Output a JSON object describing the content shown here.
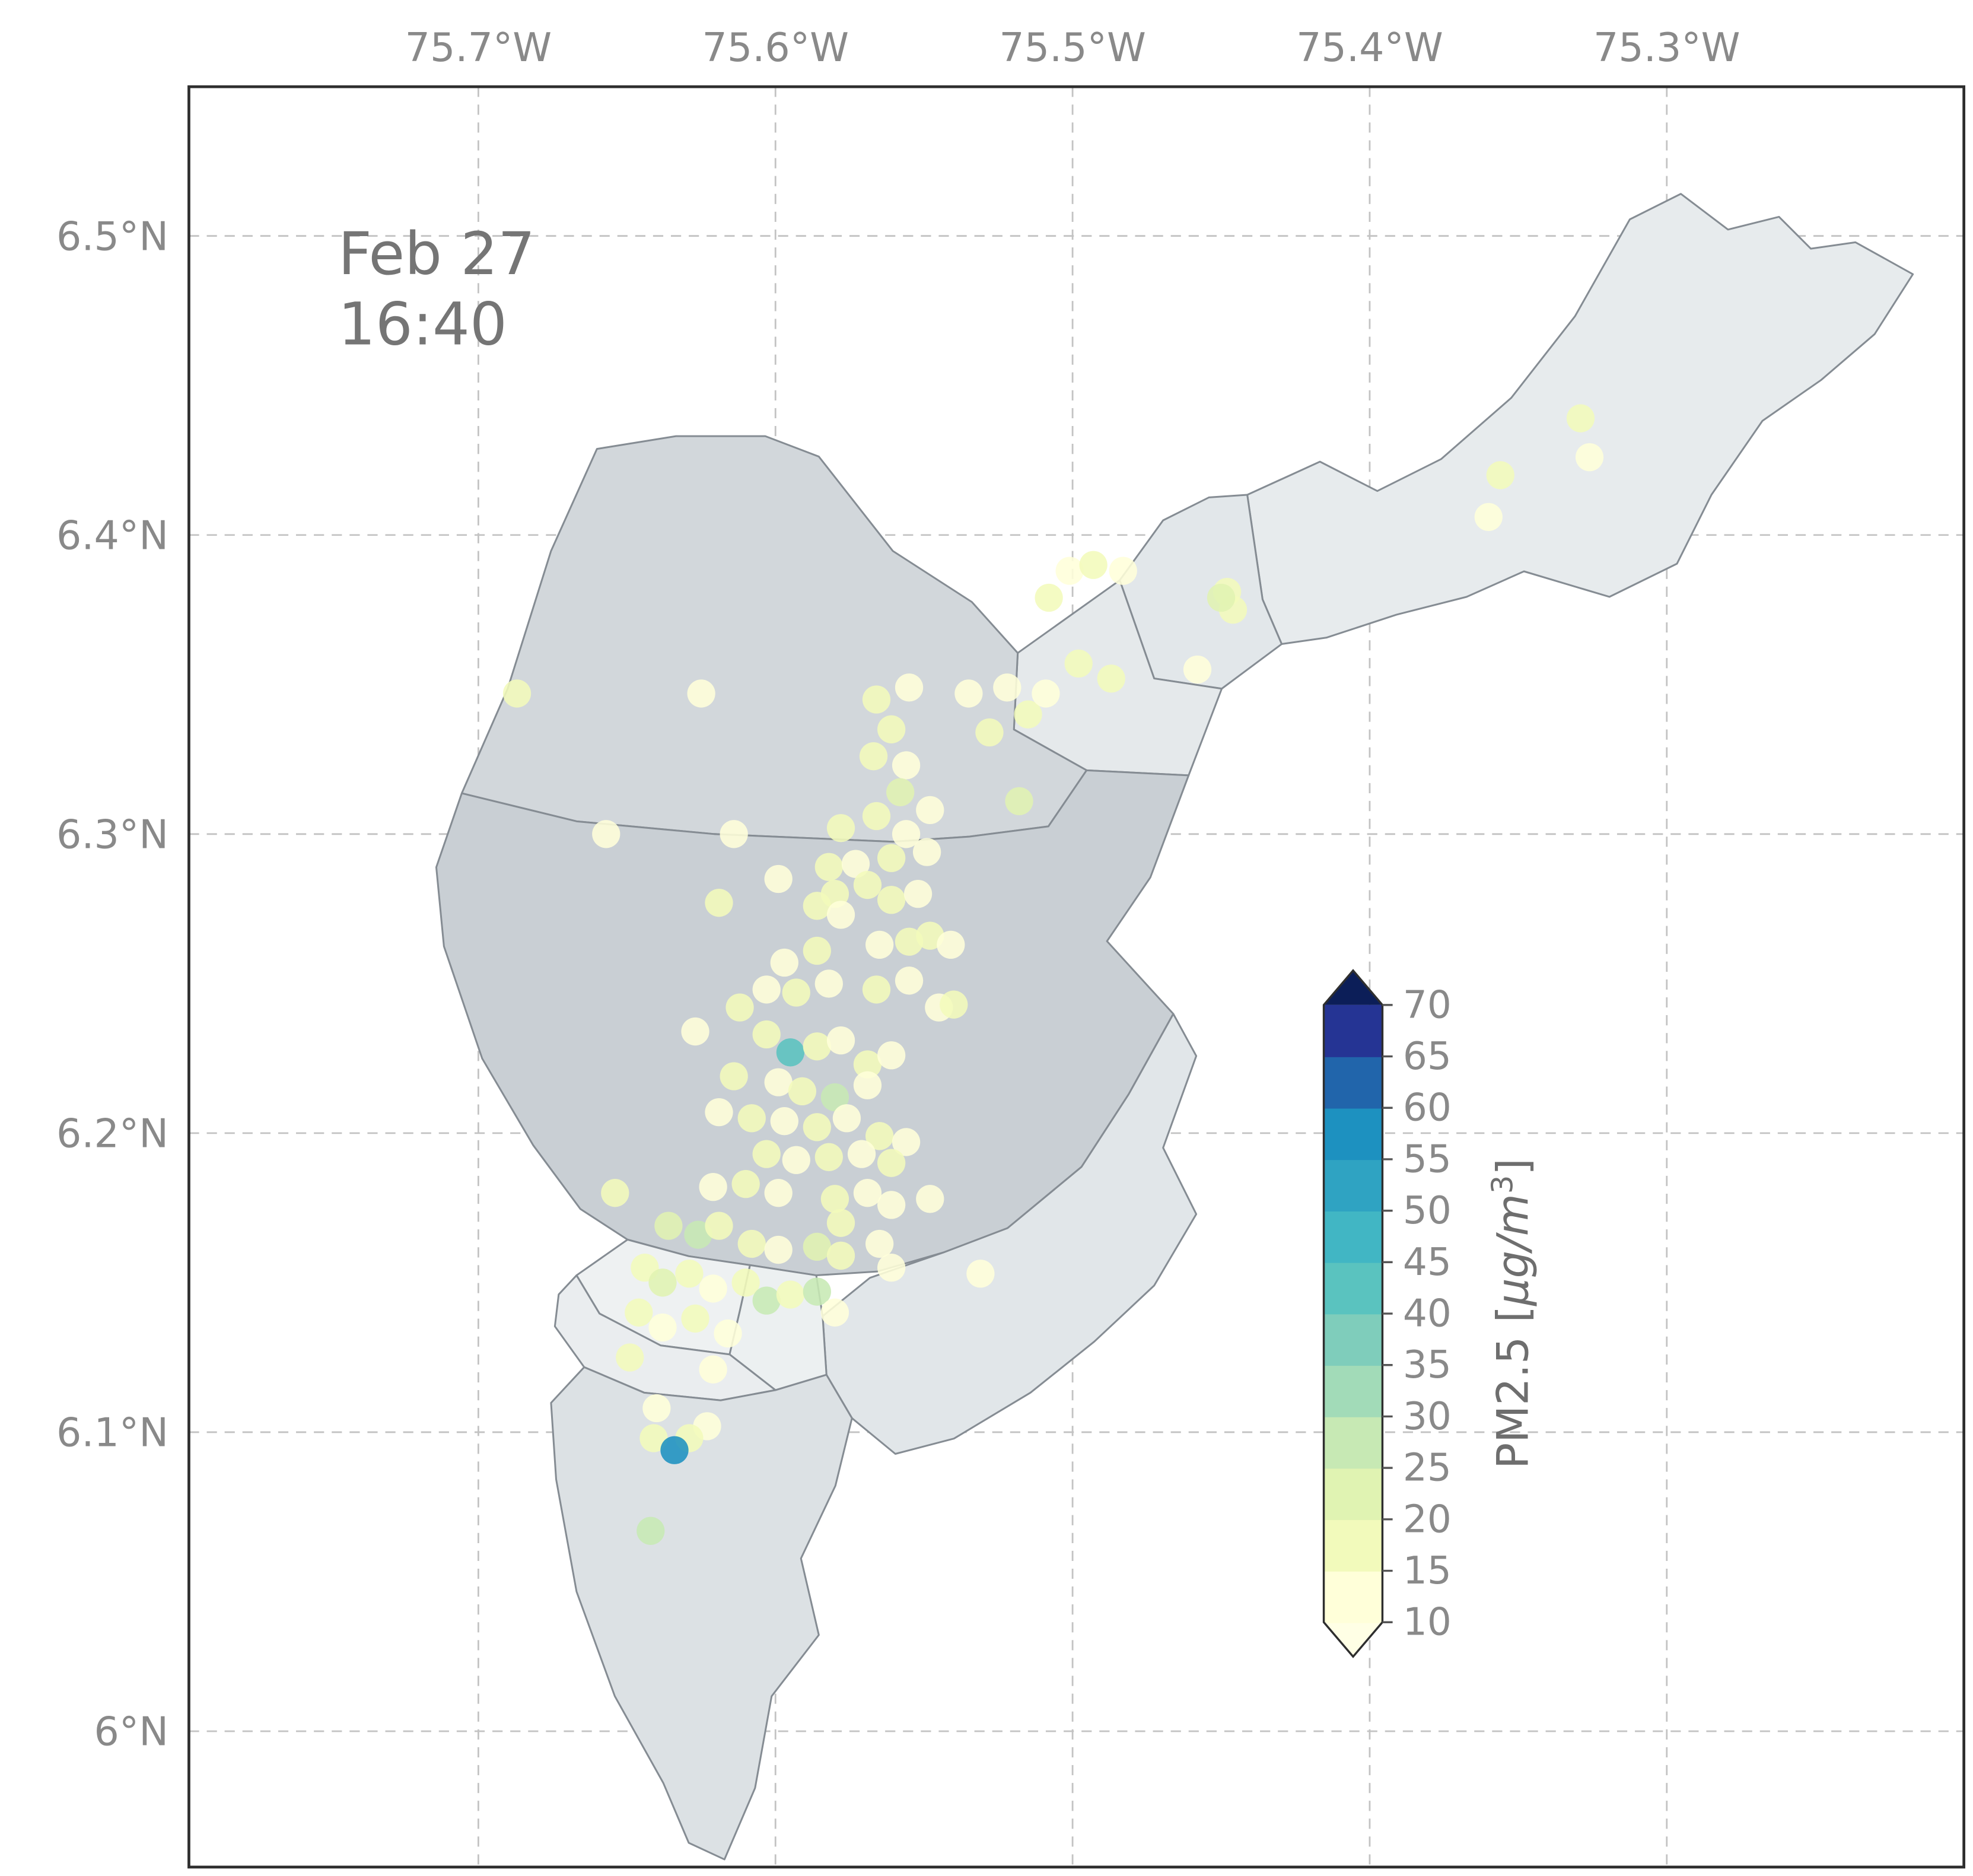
{
  "annotation": {
    "line1": "Feb 27",
    "line2": "16:40"
  },
  "axes": {
    "top_ticks": [
      {
        "label": "75.7°W",
        "lon": -75.7
      },
      {
        "label": "75.6°W",
        "lon": -75.6
      },
      {
        "label": "75.5°W",
        "lon": -75.5
      },
      {
        "label": "75.4°W",
        "lon": -75.4
      },
      {
        "label": "75.3°W",
        "lon": -75.3
      }
    ],
    "left_ticks": [
      {
        "label": "6.5°N",
        "lat": 6.5
      },
      {
        "label": "6.4°N",
        "lat": 6.4
      },
      {
        "label": "6.3°N",
        "lat": 6.3
      },
      {
        "label": "6.2°N",
        "lat": 6.2
      },
      {
        "label": "6.1°N",
        "lat": 6.1
      },
      {
        "label": "6°N",
        "lat": 6.0
      }
    ],
    "grid_color": "#c3c3c3",
    "frame_color": "#2e2e2e"
  },
  "colorbar": {
    "label_prefix": "PM2.5 [",
    "label_unit": "μg/m",
    "label_sup": "3",
    "label_suffix": "]",
    "levels": [
      10,
      15,
      20,
      25,
      30,
      35,
      40,
      45,
      50,
      55,
      60,
      65,
      70
    ],
    "tick_labels": [
      "10",
      "15",
      "20",
      "25",
      "30",
      "35",
      "40",
      "45",
      "50",
      "55",
      "60",
      "65",
      "70"
    ],
    "segment_colors": [
      "#ffffd9",
      "#f2fabb",
      "#e0f3b2",
      "#c7e9b4",
      "#a2dbb8",
      "#7fcdbb",
      "#5ac3bf",
      "#41b6c4",
      "#2fa3c2",
      "#1d91c0",
      "#2165ab",
      "#253494"
    ],
    "under_color": "#ffffe5",
    "over_color": "#0c1e58"
  },
  "map": {
    "border_color": "#858c93",
    "regions": [
      {
        "id": "region-1",
        "fill": "#e7ebed",
        "points": [
          [
            1005,
            505
          ],
          [
            990,
            470
          ],
          [
            978,
            388
          ],
          [
            1035,
            362
          ],
          [
            1080,
            385
          ],
          [
            1130,
            360
          ],
          [
            1185,
            312
          ],
          [
            1235,
            248
          ],
          [
            1278,
            172
          ],
          [
            1318,
            152
          ],
          [
            1355,
            180
          ],
          [
            1395,
            170
          ],
          [
            1420,
            195
          ],
          [
            1455,
            190
          ],
          [
            1500,
            215
          ],
          [
            1470,
            262
          ],
          [
            1428,
            298
          ],
          [
            1382,
            330
          ],
          [
            1342,
            388
          ],
          [
            1315,
            442
          ],
          [
            1262,
            468
          ],
          [
            1195,
            448
          ],
          [
            1150,
            468
          ],
          [
            1095,
            482
          ],
          [
            1040,
            500
          ]
        ]
      },
      {
        "id": "region-2",
        "fill": "#e2e7ea",
        "points": [
          [
            878,
            455
          ],
          [
            912,
            408
          ],
          [
            948,
            390
          ],
          [
            978,
            388
          ],
          [
            990,
            470
          ],
          [
            1005,
            505
          ],
          [
            958,
            540
          ],
          [
            905,
            532
          ]
        ]
      },
      {
        "id": "region-3",
        "fill": "#e5e9eb",
        "points": [
          [
            798,
            512
          ],
          [
            878,
            455
          ],
          [
            905,
            532
          ],
          [
            958,
            540
          ],
          [
            932,
            608
          ],
          [
            852,
            604
          ],
          [
            795,
            572
          ]
        ]
      },
      {
        "id": "region-4",
        "fill": "#d2d7db",
        "points": [
          [
            362,
            622
          ],
          [
            398,
            540
          ],
          [
            432,
            432
          ],
          [
            468,
            352
          ],
          [
            530,
            342
          ],
          [
            600,
            342
          ],
          [
            642,
            358
          ],
          [
            700,
            432
          ],
          [
            762,
            472
          ],
          [
            798,
            512
          ],
          [
            795,
            572
          ],
          [
            852,
            604
          ],
          [
            822,
            648
          ],
          [
            760,
            656
          ],
          [
            700,
            660
          ],
          [
            560,
            654
          ],
          [
            452,
            644
          ]
        ]
      },
      {
        "id": "region-5",
        "fill": "#c9cfd4",
        "points": [
          [
            362,
            622
          ],
          [
            452,
            644
          ],
          [
            560,
            654
          ],
          [
            700,
            660
          ],
          [
            760,
            656
          ],
          [
            822,
            648
          ],
          [
            852,
            604
          ],
          [
            932,
            608
          ],
          [
            902,
            688
          ],
          [
            868,
            738
          ],
          [
            920,
            795
          ],
          [
            885,
            858
          ],
          [
            848,
            915
          ],
          [
            790,
            963
          ],
          [
            740,
            982
          ],
          [
            688,
            997
          ],
          [
            640,
            1000
          ],
          [
            588,
            992
          ],
          [
            540,
            985
          ],
          [
            492,
            972
          ],
          [
            455,
            948
          ],
          [
            418,
            898
          ],
          [
            378,
            830
          ],
          [
            348,
            742
          ],
          [
            342,
            680
          ]
        ]
      },
      {
        "id": "region-6",
        "fill": "#e1e6e9",
        "points": [
          [
            790,
            963
          ],
          [
            848,
            915
          ],
          [
            885,
            858
          ],
          [
            920,
            795
          ],
          [
            938,
            828
          ],
          [
            912,
            900
          ],
          [
            938,
            952
          ],
          [
            905,
            1008
          ],
          [
            858,
            1052
          ],
          [
            808,
            1092
          ],
          [
            748,
            1128
          ],
          [
            702,
            1140
          ],
          [
            668,
            1112
          ],
          [
            648,
            1078
          ],
          [
            645,
            1032
          ],
          [
            682,
            1002
          ],
          [
            740,
            982
          ]
        ]
      },
      {
        "id": "region-7",
        "fill": "#ecf0f1",
        "points": [
          [
            588,
            992
          ],
          [
            640,
            1000
          ],
          [
            645,
            1032
          ],
          [
            648,
            1078
          ],
          [
            608,
            1090
          ],
          [
            572,
            1062
          ],
          [
            580,
            1028
          ]
        ]
      },
      {
        "id": "region-8",
        "fill": "#eef1f2",
        "points": [
          [
            492,
            972
          ],
          [
            540,
            985
          ],
          [
            588,
            992
          ],
          [
            580,
            1028
          ],
          [
            572,
            1062
          ],
          [
            518,
            1055
          ],
          [
            470,
            1030
          ],
          [
            452,
            1000
          ]
        ]
      },
      {
        "id": "region-9",
        "fill": "#eaedef",
        "points": [
          [
            452,
            1000
          ],
          [
            470,
            1030
          ],
          [
            518,
            1055
          ],
          [
            572,
            1062
          ],
          [
            608,
            1090
          ],
          [
            565,
            1098
          ],
          [
            505,
            1092
          ],
          [
            458,
            1072
          ],
          [
            435,
            1040
          ],
          [
            438,
            1015
          ]
        ]
      },
      {
        "id": "region-10",
        "fill": "#dce1e4",
        "points": [
          [
            458,
            1072
          ],
          [
            505,
            1092
          ],
          [
            565,
            1098
          ],
          [
            608,
            1090
          ],
          [
            648,
            1078
          ],
          [
            668,
            1112
          ],
          [
            655,
            1165
          ],
          [
            628,
            1222
          ],
          [
            642,
            1282
          ],
          [
            605,
            1330
          ],
          [
            592,
            1402
          ],
          [
            568,
            1458
          ],
          [
            540,
            1445
          ],
          [
            520,
            1398
          ],
          [
            482,
            1330
          ],
          [
            452,
            1248
          ],
          [
            436,
            1160
          ],
          [
            432,
            1100
          ]
        ]
      }
    ]
  },
  "chart_data": {
    "type": "scatter",
    "title": "",
    "timestamp_label": "Feb 27 16:40",
    "colorbar_label": "PM2.5 [μg/m³]",
    "lon_range": [
      -75.797,
      -75.2
    ],
    "lat_range": [
      5.955,
      6.55
    ],
    "grid": true,
    "point_format": [
      "lon",
      "lat",
      "pm25"
    ],
    "points": [
      [
        -75.329,
        6.439,
        15
      ],
      [
        -75.326,
        6.426,
        13
      ],
      [
        -75.356,
        6.42,
        15
      ],
      [
        -75.36,
        6.406,
        14
      ],
      [
        -75.448,
        6.381,
        16
      ],
      [
        -75.446,
        6.375,
        17
      ],
      [
        -75.45,
        6.379,
        22
      ],
      [
        -75.458,
        6.355,
        13
      ],
      [
        -75.501,
        6.388,
        13
      ],
      [
        -75.493,
        6.39,
        15
      ],
      [
        -75.483,
        6.388,
        14
      ],
      [
        -75.508,
        6.379,
        16
      ],
      [
        -75.498,
        6.357,
        18
      ],
      [
        -75.487,
        6.352,
        15
      ],
      [
        -75.687,
        6.347,
        15
      ],
      [
        -75.625,
        6.347,
        13
      ],
      [
        -75.657,
        6.3,
        14
      ],
      [
        -75.614,
        6.3,
        13
      ],
      [
        -75.566,
        6.345,
        16
      ],
      [
        -75.555,
        6.349,
        13
      ],
      [
        -75.561,
        6.335,
        15
      ],
      [
        -75.567,
        6.326,
        18
      ],
      [
        -75.556,
        6.323,
        14
      ],
      [
        -75.535,
        6.347,
        13
      ],
      [
        -75.528,
        6.334,
        15
      ],
      [
        -75.515,
        6.34,
        16
      ],
      [
        -75.522,
        6.349,
        14
      ],
      [
        -75.509,
        6.347,
        13
      ],
      [
        -75.558,
        6.314,
        20
      ],
      [
        -75.548,
        6.308,
        14
      ],
      [
        -75.566,
        6.306,
        16
      ],
      [
        -75.578,
        6.302,
        15
      ],
      [
        -75.556,
        6.3,
        13
      ],
      [
        -75.518,
        6.311,
        24
      ],
      [
        -75.582,
        6.289,
        15
      ],
      [
        -75.573,
        6.29,
        14
      ],
      [
        -75.561,
        6.292,
        16
      ],
      [
        -75.549,
        6.294,
        13
      ],
      [
        -75.58,
        6.28,
        18
      ],
      [
        -75.569,
        6.283,
        15
      ],
      [
        -75.599,
        6.285,
        14
      ],
      [
        -75.586,
        6.276,
        15
      ],
      [
        -75.578,
        6.273,
        13
      ],
      [
        -75.561,
        6.278,
        16
      ],
      [
        -75.552,
        6.28,
        14
      ],
      [
        -75.619,
        6.277,
        15
      ],
      [
        -75.586,
        6.261,
        16
      ],
      [
        -75.597,
        6.257,
        14
      ],
      [
        -75.565,
        6.263,
        13
      ],
      [
        -75.555,
        6.264,
        15
      ],
      [
        -75.548,
        6.266,
        17
      ],
      [
        -75.541,
        6.263,
        13
      ],
      [
        -75.612,
        6.242,
        15
      ],
      [
        -75.603,
        6.248,
        13
      ],
      [
        -75.593,
        6.247,
        16
      ],
      [
        -75.582,
        6.25,
        14
      ],
      [
        -75.566,
        6.248,
        15
      ],
      [
        -75.555,
        6.251,
        13
      ],
      [
        -75.545,
        6.242,
        14
      ],
      [
        -75.54,
        6.243,
        16
      ],
      [
        -75.627,
        6.234,
        14
      ],
      [
        -75.603,
        6.233,
        15
      ],
      [
        -75.595,
        6.227,
        40
      ],
      [
        -75.586,
        6.229,
        16
      ],
      [
        -75.578,
        6.231,
        13
      ],
      [
        -75.569,
        6.223,
        18
      ],
      [
        -75.561,
        6.226,
        14
      ],
      [
        -75.614,
        6.219,
        15
      ],
      [
        -75.599,
        6.217,
        13
      ],
      [
        -75.591,
        6.214,
        16
      ],
      [
        -75.58,
        6.212,
        25
      ],
      [
        -75.569,
        6.216,
        14
      ],
      [
        -75.619,
        6.207,
        13
      ],
      [
        -75.608,
        6.205,
        15
      ],
      [
        -75.597,
        6.204,
        14
      ],
      [
        -75.586,
        6.202,
        16
      ],
      [
        -75.576,
        6.205,
        13
      ],
      [
        -75.565,
        6.199,
        15
      ],
      [
        -75.556,
        6.197,
        13
      ],
      [
        -75.603,
        6.193,
        16
      ],
      [
        -75.593,
        6.191,
        14
      ],
      [
        -75.582,
        6.192,
        15
      ],
      [
        -75.571,
        6.193,
        13
      ],
      [
        -75.561,
        6.19,
        17
      ],
      [
        -75.654,
        6.18,
        18
      ],
      [
        -75.621,
        6.182,
        14
      ],
      [
        -75.61,
        6.183,
        15
      ],
      [
        -75.599,
        6.18,
        13
      ],
      [
        -75.58,
        6.178,
        16
      ],
      [
        -75.569,
        6.18,
        14
      ],
      [
        -75.561,
        6.176,
        13
      ],
      [
        -75.578,
        6.17,
        15
      ],
      [
        -75.548,
        6.178,
        13
      ],
      [
        -75.636,
        6.169,
        20
      ],
      [
        -75.626,
        6.166,
        25
      ],
      [
        -75.619,
        6.169,
        18
      ],
      [
        -75.608,
        6.163,
        15
      ],
      [
        -75.599,
        6.161,
        14
      ],
      [
        -75.586,
        6.162,
        22
      ],
      [
        -75.578,
        6.159,
        16
      ],
      [
        -75.565,
        6.163,
        14
      ],
      [
        -75.561,
        6.155,
        13
      ],
      [
        -75.531,
        6.153,
        13
      ],
      [
        -75.644,
        6.155,
        18
      ],
      [
        -75.638,
        6.15,
        22
      ],
      [
        -75.629,
        6.153,
        16
      ],
      [
        -75.621,
        6.148,
        14
      ],
      [
        -75.61,
        6.15,
        15
      ],
      [
        -75.603,
        6.144,
        25
      ],
      [
        -75.595,
        6.146,
        16
      ],
      [
        -75.586,
        6.147,
        28
      ],
      [
        -75.58,
        6.14,
        14
      ],
      [
        -75.646,
        6.14,
        15
      ],
      [
        -75.638,
        6.135,
        13
      ],
      [
        -75.627,
        6.138,
        16
      ],
      [
        -75.616,
        6.133,
        14
      ],
      [
        -75.649,
        6.125,
        15
      ],
      [
        -75.621,
        6.121,
        13
      ],
      [
        -75.64,
        6.108,
        14
      ],
      [
        -75.623,
        6.102,
        13
      ],
      [
        -75.641,
        6.098,
        15
      ],
      [
        -75.629,
        6.098,
        16
      ],
      [
        -75.634,
        6.094,
        55
      ],
      [
        -75.642,
        6.067,
        25
      ]
    ]
  }
}
